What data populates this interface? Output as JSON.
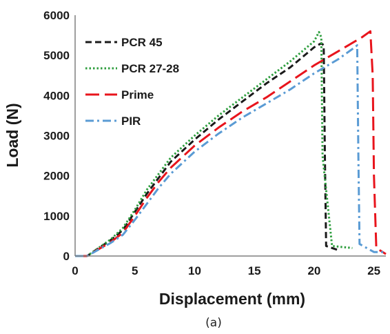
{
  "chart_data": {
    "type": "line",
    "title": "",
    "xlabel": "Displacement (mm)",
    "ylabel": "Load (N)",
    "xlim": [
      0,
      26
    ],
    "ylim": [
      0,
      6000
    ],
    "xticks": [
      0,
      5,
      10,
      15,
      20,
      25
    ],
    "yticks": [
      0,
      1000,
      2000,
      3000,
      4000,
      5000,
      6000
    ],
    "grid": false,
    "legend_position": "top-left",
    "caption": "(a)",
    "series": [
      {
        "name": "PCR 45",
        "color": "#1a1a1a",
        "dash": "dashed",
        "x": [
          0,
          1,
          3,
          4,
          5,
          6,
          7,
          8,
          10,
          12,
          14,
          16,
          18,
          20,
          20.6,
          20.8,
          20.9,
          21,
          22
        ],
        "y": [
          0,
          0,
          400,
          650,
          1100,
          1550,
          1950,
          2350,
          2900,
          3400,
          3850,
          4300,
          4700,
          5200,
          5300,
          5250,
          2500,
          250,
          150
        ]
      },
      {
        "name": "PCR 27-28",
        "color": "#2e9e3e",
        "dash": "dotted",
        "x": [
          0,
          1,
          3,
          4,
          5,
          6,
          7,
          8,
          10,
          12,
          14,
          16,
          18,
          20,
          20.4,
          20.6,
          20.7,
          21.5,
          23.2
        ],
        "y": [
          0,
          0,
          420,
          700,
          1150,
          1650,
          2050,
          2450,
          3000,
          3500,
          3950,
          4400,
          4850,
          5350,
          5580,
          5450,
          2500,
          250,
          200
        ]
      },
      {
        "name": "Prime",
        "color": "#e8141c",
        "dash": "longdash",
        "x": [
          0,
          1,
          3,
          4,
          5,
          6,
          7,
          8,
          10,
          12,
          14,
          16,
          18,
          20,
          22,
          24,
          24.7,
          24.9,
          25,
          25.2,
          26
        ],
        "y": [
          0,
          0,
          350,
          580,
          1000,
          1450,
          1850,
          2200,
          2750,
          3200,
          3600,
          3950,
          4350,
          4750,
          5100,
          5450,
          5600,
          4500,
          2000,
          200,
          50
        ]
      },
      {
        "name": "PIR",
        "color": "#5a9bd4",
        "dash": "dashdot",
        "x": [
          0,
          1,
          3,
          4,
          5,
          6,
          7,
          8,
          10,
          12,
          14,
          16,
          18,
          20,
          22,
          23.4,
          23.6,
          23.7,
          23.8,
          25,
          26
        ],
        "y": [
          0,
          0,
          330,
          530,
          900,
          1300,
          1700,
          2050,
          2600,
          3050,
          3450,
          3800,
          4150,
          4550,
          4900,
          5200,
          5250,
          2500,
          300,
          100,
          100
        ]
      }
    ]
  }
}
